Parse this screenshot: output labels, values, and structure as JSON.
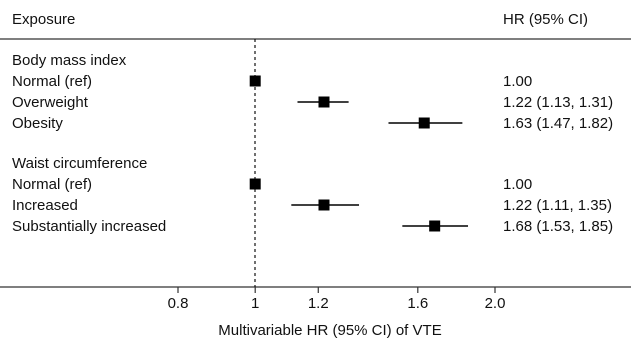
{
  "header": {
    "left": "Exposure",
    "right": "HR (95% CI)"
  },
  "chart_data": {
    "type": "forest",
    "xlabel": "Multivariable HR (95% CI) of VTE",
    "x_scale": "log",
    "x_ticks": [
      {
        "value": 0.8,
        "label": "0.8"
      },
      {
        "value": 1.0,
        "label": "1"
      },
      {
        "value": 1.2,
        "label": "1.2"
      },
      {
        "value": 1.6,
        "label": "1.6"
      },
      {
        "value": 2.0,
        "label": "2.0"
      }
    ],
    "reference_line": 1.0,
    "groups": [
      {
        "title": "Body mass index",
        "rows": [
          {
            "label": "Normal (ref)",
            "hr": 1.0,
            "lo": 1.0,
            "hi": 1.0,
            "text": "1.00"
          },
          {
            "label": "Overweight",
            "hr": 1.22,
            "lo": 1.13,
            "hi": 1.31,
            "text": "1.22 (1.13, 1.31)"
          },
          {
            "label": "Obesity",
            "hr": 1.63,
            "lo": 1.47,
            "hi": 1.82,
            "text": "1.63 (1.47, 1.82)"
          }
        ]
      },
      {
        "title": "Waist circumference",
        "rows": [
          {
            "label": "Normal (ref)",
            "hr": 1.0,
            "lo": 1.0,
            "hi": 1.0,
            "text": "1.00"
          },
          {
            "label": "Increased",
            "hr": 1.22,
            "lo": 1.11,
            "hi": 1.35,
            "text": "1.22 (1.11, 1.35)"
          },
          {
            "label": "Substantially increased",
            "hr": 1.68,
            "lo": 1.53,
            "hi": 1.85,
            "text": "1.68 (1.53, 1.85)"
          }
        ]
      }
    ]
  }
}
